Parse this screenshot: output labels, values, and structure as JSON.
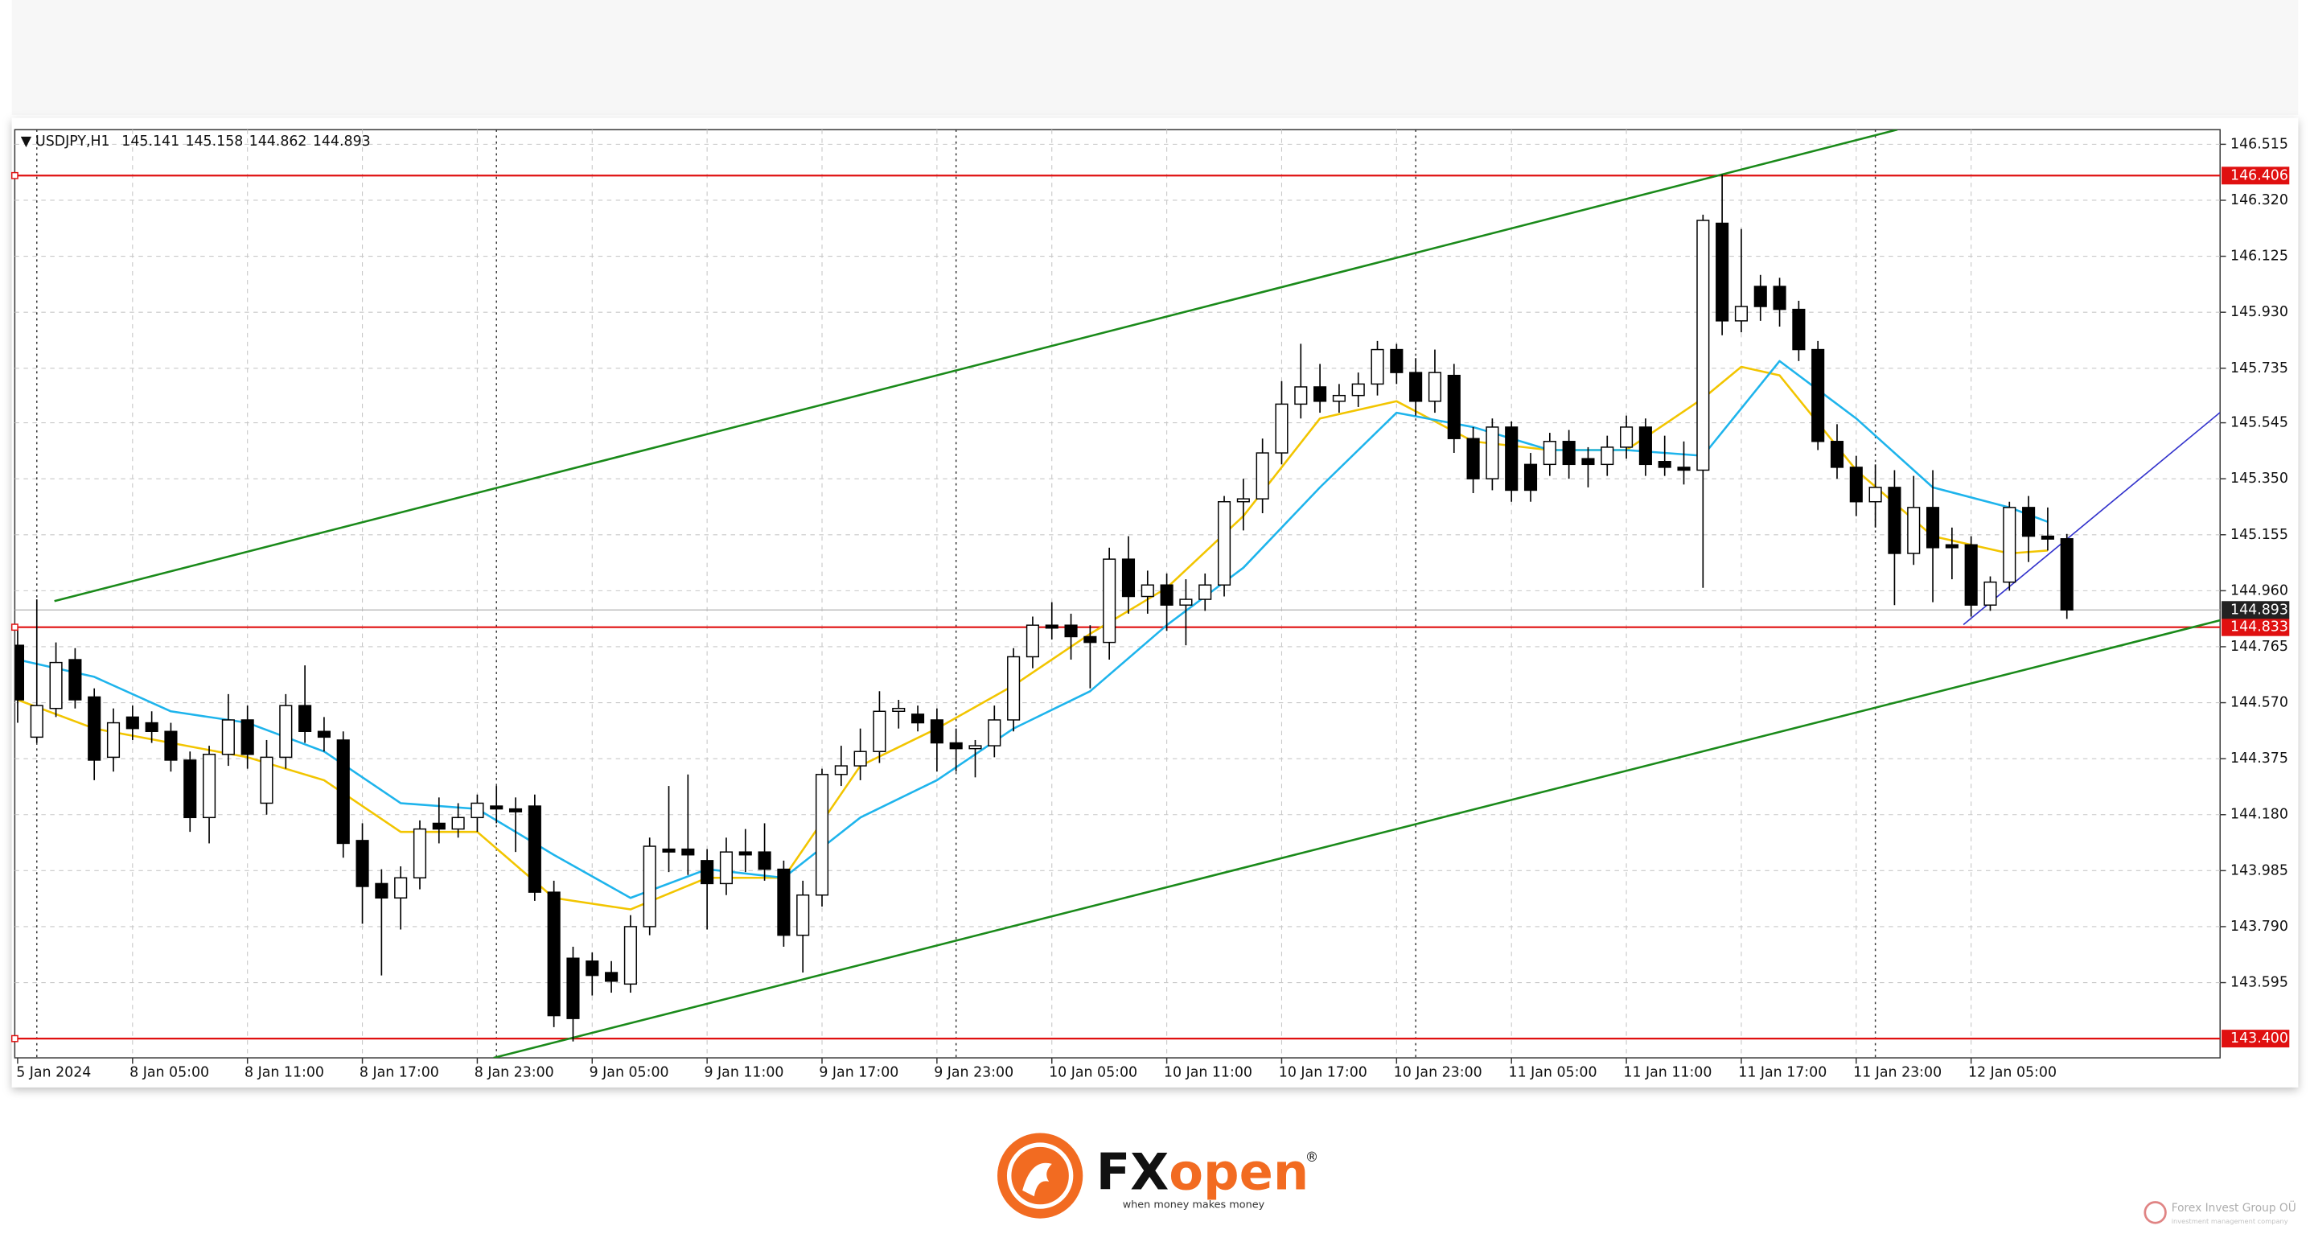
{
  "chart_data": {
    "type": "candlestick",
    "symbol": "USDJPY,H1",
    "categories": [
      "5 Jan 2024",
      null,
      null,
      null,
      null,
      null,
      "8 Jan 05:00",
      null,
      null,
      null,
      null,
      null,
      "8 Jan 11:00",
      null,
      null,
      null,
      null,
      null,
      "8 Jan 17:00",
      null,
      null,
      null,
      null,
      null,
      "8 Jan 23:00",
      null,
      null,
      null,
      null,
      null,
      "9 Jan 05:00",
      null,
      null,
      null,
      null,
      null,
      "9 Jan 11:00",
      null,
      null,
      null,
      null,
      null,
      "9 Jan 17:00",
      null,
      null,
      null,
      null,
      null,
      "9 Jan 23:00",
      null,
      null,
      null,
      null,
      null,
      "10 Jan 05:00",
      null,
      null,
      null,
      null,
      null,
      "10 Jan 11:00",
      null,
      null,
      null,
      null,
      null,
      "10 Jan 17:00",
      null,
      null,
      null,
      null,
      null,
      "10 Jan 23:00",
      null,
      null,
      null,
      null,
      null,
      "11 Jan 05:00",
      null,
      null,
      null,
      null,
      null,
      "11 Jan 11:00",
      null,
      null,
      null,
      null,
      null,
      "11 Jan 17:00",
      null,
      null,
      null,
      null,
      null,
      "11 Jan 23:00",
      null,
      null,
      null,
      null,
      null,
      "12 Jan 05:00",
      null,
      null,
      null,
      null,
      null
    ],
    "open": [
      144.77,
      144.45,
      144.55,
      144.72,
      144.59,
      144.38,
      144.52,
      144.5,
      144.47,
      144.37,
      144.17,
      144.39,
      144.51,
      144.22,
      144.38,
      144.56,
      144.47,
      144.44,
      144.09,
      143.94,
      143.89,
      143.96,
      144.15,
      144.13,
      144.17,
      144.21,
      144.2,
      144.21,
      143.91,
      143.68,
      143.67,
      143.63,
      143.59,
      143.79,
      144.06,
      144.06,
      144.02,
      143.94,
      144.05,
      144.05,
      143.99,
      143.76,
      143.9,
      144.32,
      144.35,
      144.4,
      144.54,
      144.53,
      144.51,
      144.43,
      144.41,
      144.42,
      144.51,
      144.73,
      144.84,
      144.84,
      144.8,
      144.78,
      145.07,
      144.94,
      144.98,
      144.91,
      144.93,
      144.98,
      145.27,
      145.28,
      145.44,
      145.61,
      145.67,
      145.62,
      145.64,
      145.68,
      145.8,
      145.72,
      145.62,
      145.71,
      145.49,
      145.35,
      145.53,
      145.4,
      145.4,
      145.48,
      145.42,
      145.4,
      145.46,
      145.53,
      145.41,
      145.39,
      145.38,
      146.24,
      145.9,
      146.02,
      146.02,
      145.94,
      145.8,
      145.48,
      145.39,
      145.27,
      145.32,
      145.09,
      145.25,
      145.12,
      145.12,
      144.91,
      144.99,
      145.25,
      145.15,
      145.141
    ],
    "high": [
      144.83,
      144.93,
      144.78,
      144.76,
      144.62,
      144.55,
      144.56,
      144.54,
      144.5,
      144.4,
      144.42,
      144.6,
      144.56,
      144.44,
      144.6,
      144.7,
      144.52,
      144.47,
      144.15,
      143.99,
      144.0,
      144.16,
      144.24,
      144.22,
      144.25,
      144.28,
      144.24,
      144.25,
      143.95,
      143.72,
      143.7,
      143.67,
      143.83,
      144.1,
      144.28,
      144.32,
      144.06,
      144.1,
      144.13,
      144.15,
      144.02,
      143.95,
      144.34,
      144.42,
      144.48,
      144.61,
      144.58,
      144.56,
      144.55,
      144.48,
      144.44,
      144.56,
      144.76,
      144.87,
      144.92,
      144.88,
      144.84,
      145.11,
      145.15,
      145.03,
      145.02,
      145.0,
      145.02,
      145.29,
      145.35,
      145.49,
      145.69,
      145.82,
      145.75,
      145.68,
      145.72,
      145.83,
      145.82,
      145.77,
      145.8,
      145.75,
      145.53,
      145.56,
      145.55,
      145.44,
      145.51,
      145.52,
      145.46,
      145.5,
      145.57,
      145.56,
      145.5,
      145.48,
      146.27,
      146.41,
      146.22,
      146.06,
      146.05,
      145.97,
      145.83,
      145.54,
      145.43,
      145.4,
      145.38,
      145.36,
      145.38,
      145.18,
      145.15,
      145.01,
      145.27,
      145.29,
      145.25,
      145.158
    ],
    "low": [
      144.5,
      144.43,
      144.52,
      144.55,
      144.3,
      144.33,
      144.44,
      144.43,
      144.33,
      144.12,
      144.08,
      144.35,
      144.34,
      144.18,
      144.34,
      144.43,
      144.4,
      144.03,
      143.8,
      143.62,
      143.78,
      143.92,
      144.08,
      144.1,
      144.12,
      144.15,
      144.05,
      143.88,
      143.44,
      143.39,
      143.55,
      143.56,
      143.56,
      143.76,
      143.98,
      143.97,
      143.78,
      143.9,
      143.98,
      143.95,
      143.72,
      143.63,
      143.86,
      144.28,
      144.3,
      144.36,
      144.48,
      144.47,
      144.33,
      144.33,
      144.31,
      144.38,
      144.47,
      144.69,
      144.79,
      144.72,
      144.62,
      144.72,
      144.88,
      144.88,
      144.82,
      144.77,
      144.89,
      144.94,
      145.17,
      145.23,
      145.4,
      145.56,
      145.58,
      145.58,
      145.6,
      145.64,
      145.68,
      145.57,
      145.58,
      145.44,
      145.3,
      145.31,
      145.27,
      145.27,
      145.36,
      145.35,
      145.32,
      145.36,
      145.42,
      145.36,
      145.36,
      145.33,
      144.97,
      145.85,
      145.86,
      145.9,
      145.88,
      145.76,
      145.45,
      145.35,
      145.22,
      145.18,
      144.91,
      145.05,
      144.92,
      145.0,
      144.87,
      144.89,
      144.96,
      145.06,
      145.1,
      144.862
    ],
    "close": [
      144.58,
      144.56,
      144.71,
      144.58,
      144.37,
      144.5,
      144.48,
      144.47,
      144.37,
      144.17,
      144.39,
      144.51,
      144.39,
      144.38,
      144.56,
      144.47,
      144.45,
      144.08,
      143.93,
      143.89,
      143.96,
      144.13,
      144.13,
      144.17,
      144.22,
      144.2,
      144.19,
      143.91,
      143.48,
      143.47,
      143.62,
      143.6,
      143.79,
      144.07,
      144.05,
      144.04,
      143.94,
      144.05,
      144.04,
      143.99,
      143.76,
      143.9,
      144.32,
      144.35,
      144.4,
      144.54,
      144.55,
      144.5,
      144.43,
      144.41,
      144.42,
      144.51,
      144.73,
      144.84,
      144.83,
      144.8,
      144.78,
      145.07,
      144.94,
      144.98,
      144.91,
      144.93,
      144.98,
      145.27,
      145.28,
      145.44,
      145.61,
      145.67,
      145.62,
      145.64,
      145.68,
      145.8,
      145.72,
      145.62,
      145.72,
      145.49,
      145.35,
      145.53,
      145.31,
      145.31,
      145.48,
      145.4,
      145.4,
      145.46,
      145.53,
      145.4,
      145.39,
      145.38,
      146.25,
      145.9,
      145.95,
      145.95,
      145.94,
      145.8,
      145.48,
      145.39,
      145.27,
      145.32,
      145.09,
      145.25,
      145.11,
      145.11,
      144.91,
      144.99,
      145.25,
      145.15,
      145.14,
      144.893
    ],
    "xlim": [
      -0.15,
      115
    ],
    "ylim": [
      143.333,
      146.566
    ],
    "yticks": [
      146.515,
      {
        "value": 146.32,
        "label": "146.320"
      },
      146.125,
      {
        "value": 145.93,
        "label": "145.930"
      },
      145.735,
      145.545,
      {
        "value": 145.35,
        "label": "145.350"
      },
      145.155,
      {
        "value": 144.96,
        "label": "144.960"
      },
      144.765,
      {
        "value": 144.57,
        "label": "144.570"
      },
      144.375,
      {
        "value": 144.18,
        "label": "144.180"
      },
      143.985,
      {
        "value": 143.79,
        "label": "143.790"
      },
      143.595
    ],
    "grid": true,
    "up_color": "#ffffff",
    "down_color": "#000000",
    "period_separators": [
      1,
      25,
      49,
      73,
      97
    ],
    "moving_averages": [
      {
        "color": "#f2c500",
        "x": [
          0,
          4,
          8,
          12,
          16,
          20,
          24,
          28,
          32,
          36,
          40,
          44,
          48,
          52,
          56,
          60,
          64,
          68,
          72,
          76,
          80,
          84,
          88,
          90,
          92,
          96,
          100,
          104,
          106
        ],
        "values": [
          144.58,
          144.48,
          144.43,
          144.38,
          144.3,
          144.12,
          144.12,
          143.89,
          143.85,
          143.96,
          143.96,
          144.35,
          144.48,
          144.63,
          144.81,
          144.97,
          145.22,
          145.56,
          145.62,
          145.48,
          145.45,
          145.45,
          145.63,
          145.74,
          145.71,
          145.38,
          145.15,
          145.09,
          145.1
        ]
      },
      {
        "color": "#1eb4ec",
        "x": [
          0,
          4,
          8,
          12,
          16,
          20,
          24,
          28,
          32,
          36,
          40,
          44,
          48,
          52,
          56,
          60,
          64,
          68,
          72,
          76,
          80,
          84,
          88,
          92,
          96,
          100,
          104,
          106
        ],
        "values": [
          144.72,
          144.66,
          144.54,
          144.5,
          144.4,
          144.22,
          144.2,
          144.04,
          143.89,
          143.99,
          143.96,
          144.17,
          144.3,
          144.48,
          144.61,
          144.84,
          145.04,
          145.32,
          145.58,
          145.53,
          145.45,
          145.45,
          145.43,
          145.76,
          145.56,
          145.32,
          145.25,
          145.2
        ]
      }
    ],
    "trendlines": [
      {
        "color": "#1a8a1a",
        "x": [
          1.92,
          98.15
        ],
        "values": [
          144.924,
          146.566
        ]
      },
      {
        "color": "#1a8a1a",
        "x": [
          24.85,
          115
        ],
        "values": [
          143.333,
          144.857
        ]
      },
      {
        "color": "#3333cc",
        "x": [
          101.6,
          115
        ],
        "values": [
          144.842,
          145.581
        ]
      }
    ],
    "levels": [
      {
        "value": 146.406,
        "color": "#e01010"
      },
      {
        "value": 144.833,
        "color": "#e01010"
      },
      {
        "value": 143.4,
        "label": "143.400",
        "color": "#e01010"
      }
    ],
    "last_price_color": "#222222"
  },
  "footer": {
    "brand_fx": "FX",
    "brand_open": "open",
    "registered": "®",
    "tagline": "when money makes money",
    "watermark": "Forex Invest Group OÜ",
    "watermark_sub": "investment management company"
  }
}
